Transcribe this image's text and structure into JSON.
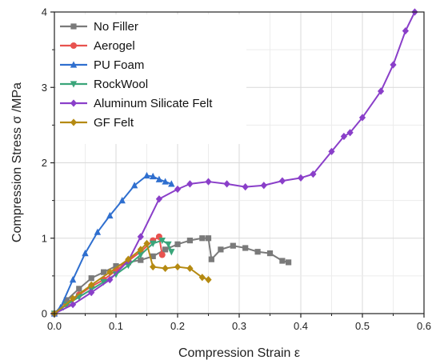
{
  "chart_data": {
    "type": "line",
    "xlabel": "Compression Strain ε",
    "ylabel": "Compression Stress σ /MPa",
    "xlim": [
      0,
      0.6
    ],
    "ylim": [
      0,
      4
    ],
    "xticks": [
      "0.0",
      "0.1",
      "0.2",
      "0.3",
      "0.4",
      "0.5",
      "0.6"
    ],
    "yticks": [
      "0",
      "1",
      "2",
      "3",
      "4"
    ],
    "grid": true,
    "legend_position": "top-left",
    "series": [
      {
        "name": "No Filler",
        "color": "#7a7a7a",
        "marker": "square",
        "x": [
          0,
          0.02,
          0.04,
          0.06,
          0.08,
          0.1,
          0.12,
          0.14,
          0.16,
          0.18,
          0.2,
          0.22,
          0.24,
          0.25,
          0.255,
          0.27,
          0.29,
          0.31,
          0.33,
          0.35,
          0.37,
          0.38
        ],
        "y": [
          0,
          0.18,
          0.33,
          0.47,
          0.55,
          0.63,
          0.68,
          0.71,
          0.76,
          0.85,
          0.92,
          0.97,
          1.0,
          1.0,
          0.72,
          0.85,
          0.9,
          0.87,
          0.82,
          0.8,
          0.7,
          0.68
        ]
      },
      {
        "name": "Aerogel",
        "color": "#e8524f",
        "marker": "circle",
        "x": [
          0,
          0.02,
          0.04,
          0.06,
          0.08,
          0.1,
          0.12,
          0.14,
          0.16,
          0.17,
          0.175
        ],
        "y": [
          0,
          0.12,
          0.25,
          0.36,
          0.45,
          0.57,
          0.7,
          0.82,
          0.97,
          1.02,
          0.78
        ]
      },
      {
        "name": "PU Foam",
        "color": "#2f6fcf",
        "marker": "triangle",
        "x": [
          0,
          0.01,
          0.03,
          0.05,
          0.07,
          0.09,
          0.11,
          0.13,
          0.15,
          0.16,
          0.17,
          0.18,
          0.19
        ],
        "y": [
          0,
          0.08,
          0.45,
          0.8,
          1.08,
          1.3,
          1.5,
          1.7,
          1.83,
          1.82,
          1.78,
          1.75,
          1.72
        ]
      },
      {
        "name": "RockWool",
        "color": "#3aa57a",
        "marker": "triangle-down",
        "x": [
          0,
          0.02,
          0.04,
          0.06,
          0.08,
          0.1,
          0.12,
          0.14,
          0.16,
          0.175,
          0.185,
          0.19
        ],
        "y": [
          0,
          0.12,
          0.22,
          0.32,
          0.42,
          0.52,
          0.64,
          0.78,
          0.93,
          0.97,
          0.92,
          0.82
        ]
      },
      {
        "name": "Aluminum Silicate Felt",
        "color": "#8a3fc9",
        "marker": "diamond",
        "x": [
          0,
          0.03,
          0.06,
          0.09,
          0.12,
          0.14,
          0.17,
          0.2,
          0.22,
          0.25,
          0.28,
          0.31,
          0.34,
          0.37,
          0.4,
          0.42,
          0.45,
          0.47,
          0.48,
          0.5,
          0.53,
          0.55,
          0.57,
          0.585
        ],
        "y": [
          0,
          0.12,
          0.28,
          0.45,
          0.7,
          1.02,
          1.52,
          1.65,
          1.72,
          1.75,
          1.72,
          1.68,
          1.7,
          1.76,
          1.8,
          1.85,
          2.15,
          2.35,
          2.4,
          2.6,
          2.95,
          3.3,
          3.75,
          4.0
        ]
      },
      {
        "name": "GF Felt",
        "color": "#b58a12",
        "marker": "diamond",
        "x": [
          0,
          0.03,
          0.06,
          0.09,
          0.12,
          0.14,
          0.15,
          0.16,
          0.18,
          0.2,
          0.22,
          0.24,
          0.25
        ],
        "y": [
          0,
          0.2,
          0.38,
          0.55,
          0.72,
          0.85,
          0.93,
          0.62,
          0.6,
          0.62,
          0.6,
          0.48,
          0.45
        ]
      }
    ]
  }
}
